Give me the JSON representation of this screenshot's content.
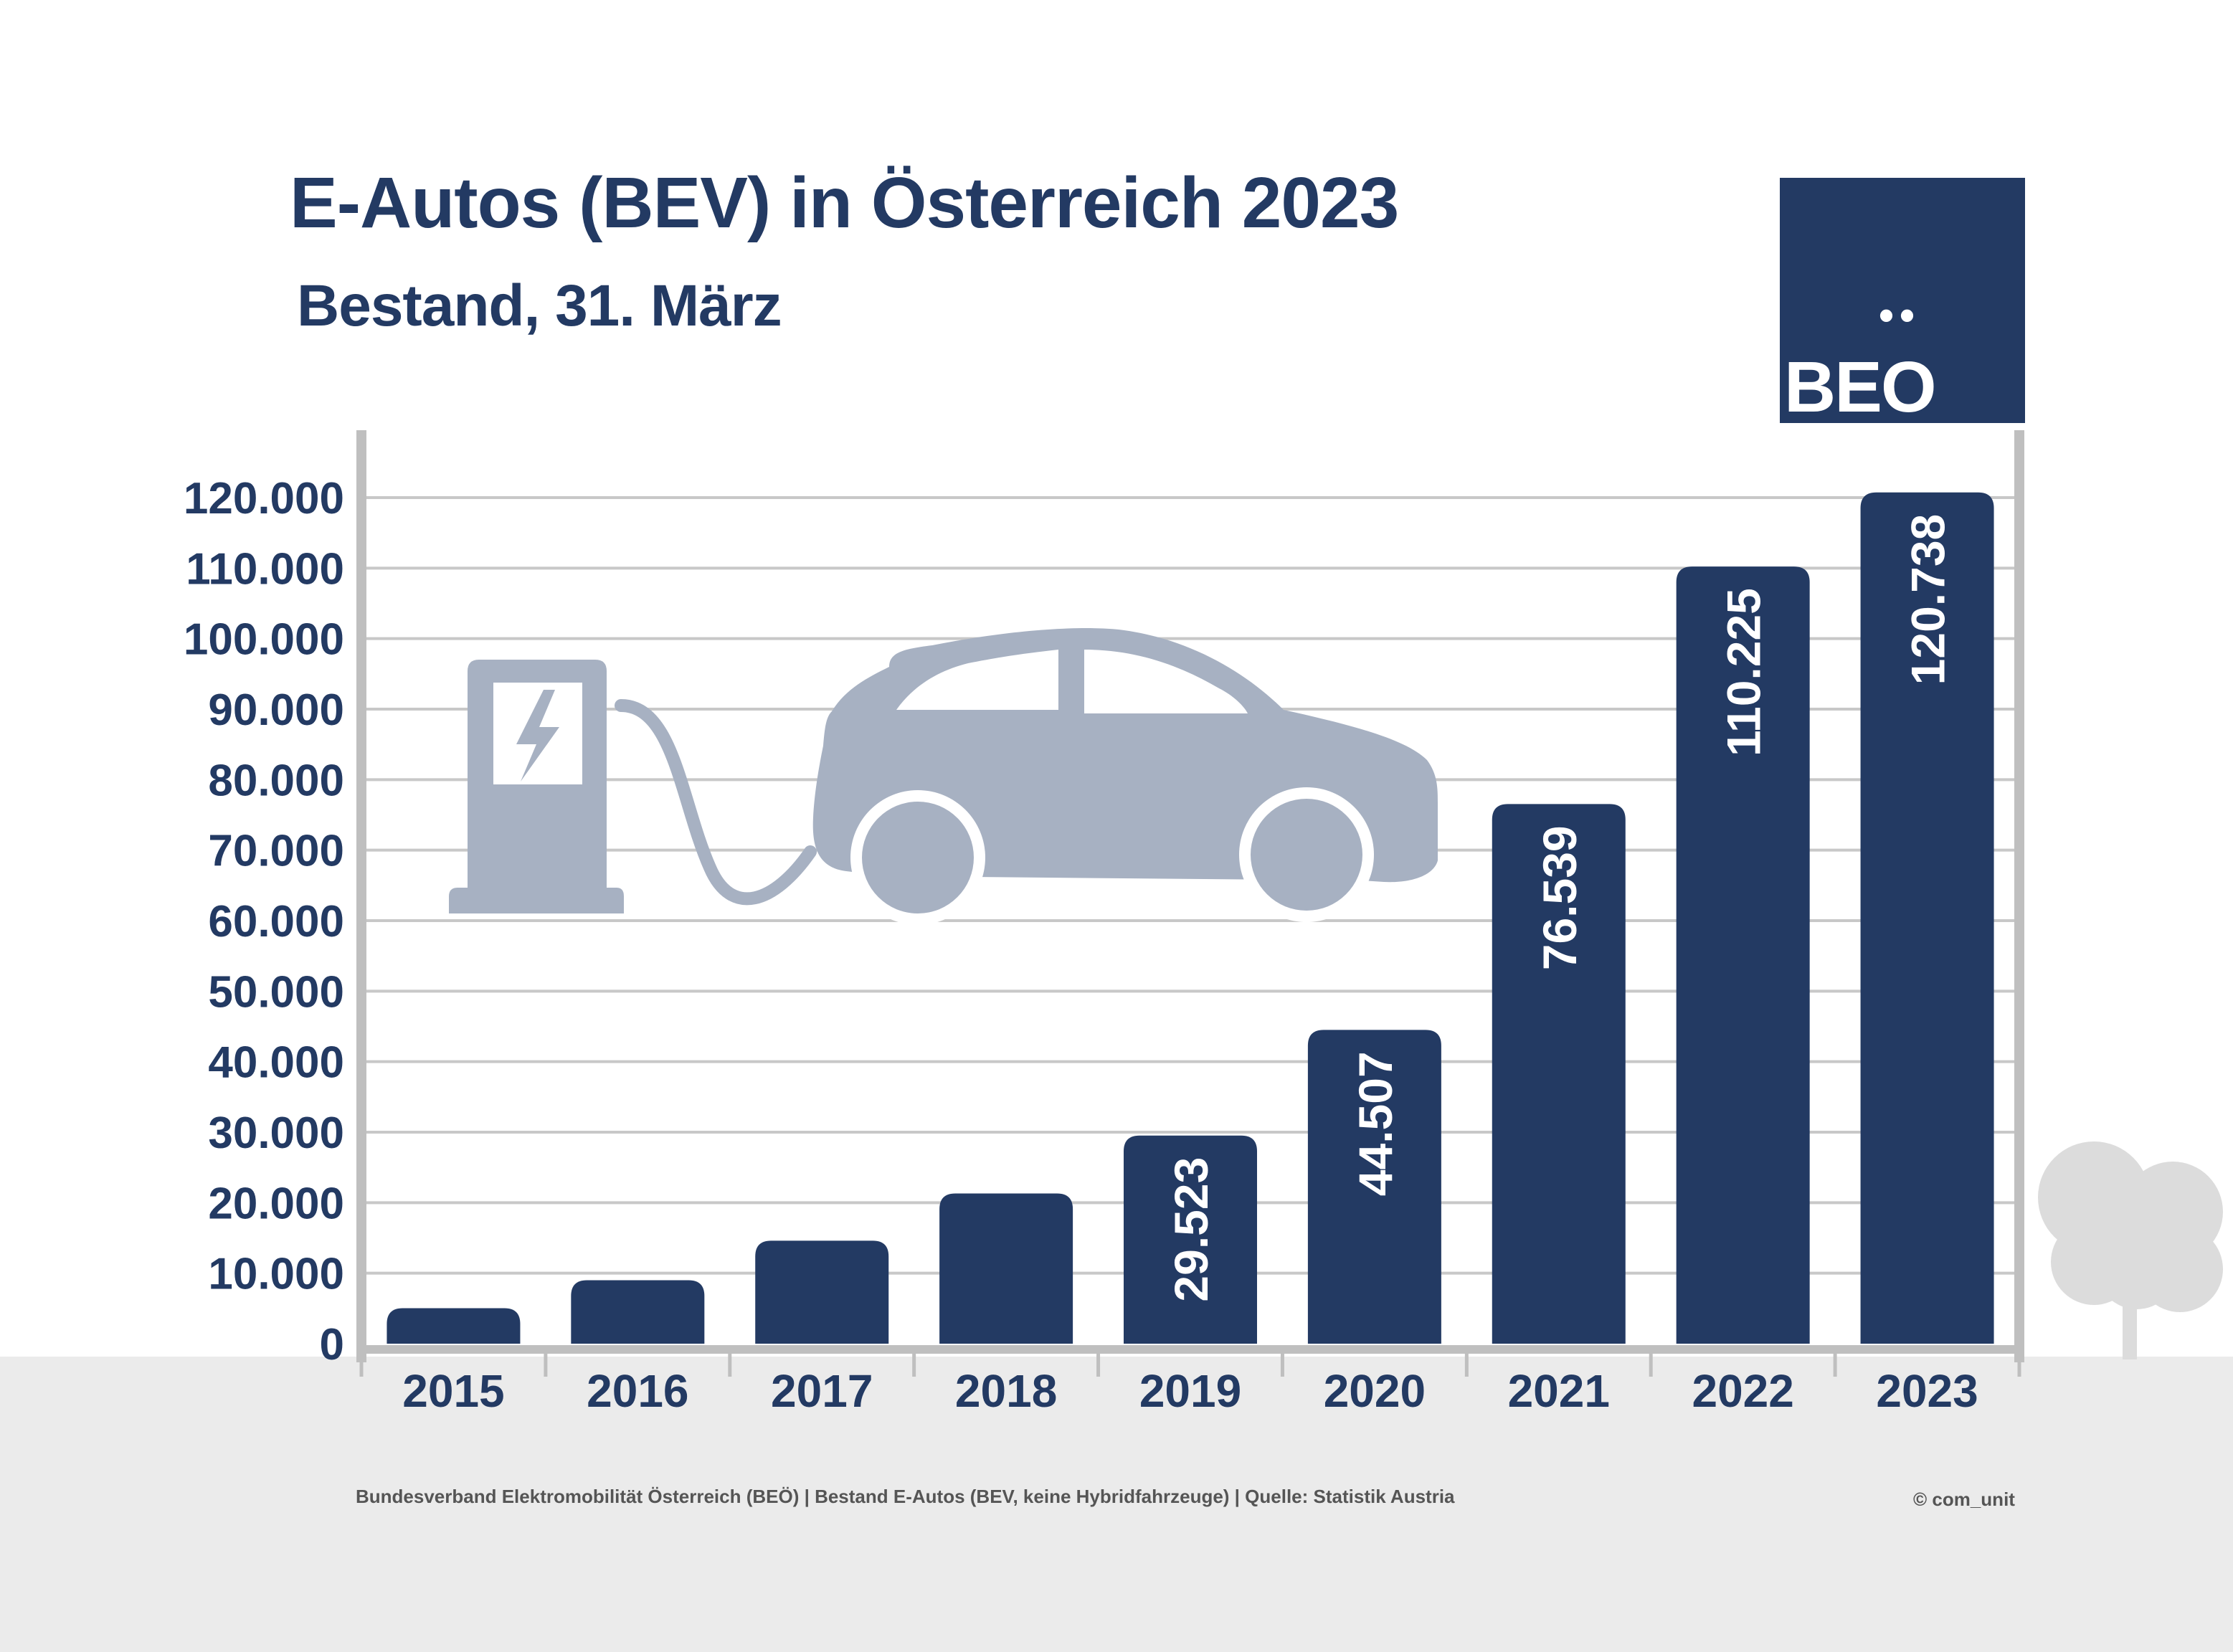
{
  "title": "E-Autos (BEV) in Österreich 2023",
  "subtitle": "Bestand, 31. März",
  "logo": {
    "text": "BEO",
    "dots": "••"
  },
  "footer": {
    "source": "Bundesverband Elektromobilität Österreich (BEÖ) | Bestand E-Autos (BEV, keine Hybridfahrzeuge) | Quelle: Statistik Austria",
    "copyright": "© com_unit"
  },
  "colors": {
    "bar": "#233a63",
    "text": "#233a63",
    "grid": "#c8c8c8",
    "axis": "#bfbfbf",
    "illustration": "#a7b1c2",
    "ground": "#ebebeb",
    "tree": "#dcdcdc"
  },
  "icons": [
    "charging-station-icon",
    "electric-car-icon",
    "tree-icon"
  ],
  "chart_data": {
    "type": "bar",
    "categories": [
      "2015",
      "2016",
      "2017",
      "2018",
      "2019",
      "2020",
      "2021",
      "2022",
      "2023"
    ],
    "values": [
      5032,
      9000,
      14600,
      21300,
      29523,
      44507,
      76539,
      110225,
      120738
    ],
    "value_labels": [
      "",
      "",
      "",
      "",
      "29.523",
      "44.507",
      "76.539",
      "110.225",
      "120.738"
    ],
    "y_ticks": [
      0,
      10000,
      20000,
      30000,
      40000,
      50000,
      60000,
      70000,
      80000,
      90000,
      100000,
      110000,
      120000
    ],
    "y_tick_labels": [
      "0",
      "10.000",
      "20.000",
      "30.000",
      "40.000",
      "50.000",
      "60.000",
      "70.000",
      "80.000",
      "90.000",
      "100.000",
      "110.000",
      "120.000"
    ],
    "ylim": [
      0,
      120000
    ],
    "xlabel": "",
    "ylabel": "",
    "grid": true,
    "legend": "none"
  }
}
